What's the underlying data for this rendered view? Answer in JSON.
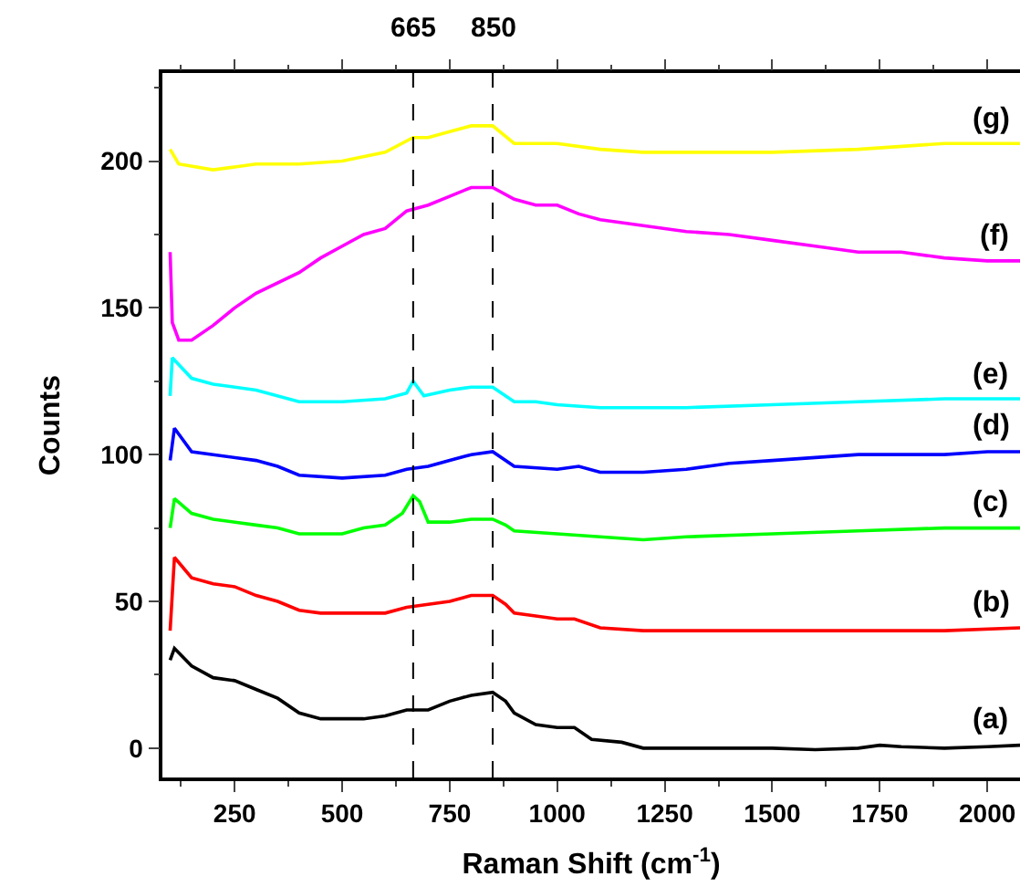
{
  "chart_data": {
    "type": "line",
    "xlabel": "Raman Shift (cm$^{-1}$)",
    "ylabel": "Counts",
    "xlim": [
      82,
      2076
    ],
    "ylim": [
      -10,
      230
    ],
    "xticks": [
      250,
      500,
      750,
      1000,
      1250,
      1500,
      1750,
      2000
    ],
    "yticks": [
      0,
      50,
      100,
      150,
      200
    ],
    "legend": false,
    "marker": "none",
    "line_style": "solid",
    "ref_lines": [
      {
        "axis": "x",
        "value": 665,
        "label": "665",
        "color": "#000000",
        "line_style": "dashed"
      },
      {
        "axis": "x",
        "value": 850,
        "label": "850",
        "color": "#000000",
        "line_style": "dashed"
      }
    ],
    "series": [
      {
        "name": "(a)",
        "color": "#000000",
        "x": [
          100,
          110,
          150,
          200,
          250,
          300,
          350,
          400,
          450,
          500,
          550,
          600,
          650,
          700,
          750,
          800,
          850,
          880,
          900,
          950,
          1000,
          1040,
          1080,
          1150,
          1200,
          1300,
          1400,
          1500,
          1600,
          1700,
          1750,
          1800,
          1900,
          2000,
          2076
        ],
        "values": [
          30,
          34,
          28,
          24,
          23,
          20,
          17,
          12,
          10,
          10,
          10,
          11,
          13,
          13,
          16,
          18,
          19,
          16,
          12,
          8,
          7,
          7,
          3,
          2,
          0,
          0,
          0,
          0,
          -0.5,
          0,
          1,
          0.5,
          0,
          0.5,
          1
        ]
      },
      {
        "name": "(b)",
        "color": "#ff0000",
        "x": [
          100,
          110,
          150,
          200,
          250,
          300,
          350,
          400,
          450,
          500,
          600,
          650,
          700,
          750,
          800,
          850,
          880,
          900,
          950,
          1000,
          1040,
          1100,
          1200,
          1300,
          1500,
          1700,
          1900,
          2076
        ],
        "values": [
          40,
          65,
          58,
          56,
          55,
          52,
          50,
          47,
          46,
          46,
          46,
          48,
          49,
          50,
          52,
          52,
          49,
          46,
          45,
          44,
          44,
          41,
          40,
          40,
          40,
          40,
          40,
          41
        ]
      },
      {
        "name": "(c)",
        "color": "#00ff00",
        "x": [
          100,
          110,
          150,
          200,
          300,
          350,
          400,
          500,
          550,
          600,
          640,
          665,
          680,
          700,
          750,
          800,
          850,
          880,
          900,
          1000,
          1100,
          1200,
          1300,
          1500,
          1700,
          1900,
          2076
        ],
        "values": [
          75,
          85,
          80,
          78,
          76,
          75,
          73,
          73,
          75,
          76,
          80,
          86,
          84,
          77,
          77,
          78,
          78,
          76,
          74,
          73,
          72,
          71,
          72,
          73,
          74,
          75,
          75
        ]
      },
      {
        "name": "(d)",
        "color": "#0000ff",
        "x": [
          100,
          110,
          150,
          200,
          300,
          350,
          400,
          500,
          600,
          650,
          700,
          750,
          800,
          850,
          900,
          1000,
          1050,
          1100,
          1200,
          1300,
          1400,
          1500,
          1600,
          1700,
          1800,
          1900,
          2000,
          2076
        ],
        "values": [
          98,
          109,
          101,
          100,
          98,
          96,
          93,
          92,
          93,
          95,
          96,
          98,
          100,
          101,
          96,
          95,
          96,
          94,
          94,
          95,
          97,
          98,
          99,
          100,
          100,
          100,
          101,
          101
        ]
      },
      {
        "name": "(e)",
        "color": "#00ffff",
        "x": [
          100,
          105,
          150,
          200,
          300,
          400,
          500,
          600,
          650,
          665,
          690,
          750,
          800,
          850,
          900,
          950,
          1000,
          1100,
          1200,
          1300,
          1500,
          1700,
          1900,
          2076
        ],
        "values": [
          120,
          133,
          126,
          124,
          122,
          118,
          118,
          119,
          121,
          125,
          120,
          122,
          123,
          123,
          118,
          118,
          117,
          116,
          116,
          116,
          117,
          118,
          119,
          119
        ]
      },
      {
        "name": "(f)",
        "color": "#ff00ff",
        "x": [
          100,
          105,
          120,
          150,
          200,
          250,
          300,
          400,
          450,
          500,
          550,
          600,
          650,
          700,
          750,
          800,
          850,
          900,
          950,
          1000,
          1050,
          1100,
          1200,
          1300,
          1400,
          1500,
          1600,
          1700,
          1800,
          1900,
          2000,
          2076
        ],
        "values": [
          169,
          145,
          139,
          139,
          144,
          150,
          155,
          162,
          167,
          171,
          175,
          177,
          183,
          185,
          188,
          191,
          191,
          187,
          185,
          185,
          182,
          180,
          178,
          176,
          175,
          173,
          171,
          169,
          169,
          167,
          166,
          166
        ]
      },
      {
        "name": "(g)",
        "color": "#ffff00",
        "x": [
          100,
          120,
          200,
          250,
          300,
          400,
          500,
          600,
          665,
          700,
          750,
          800,
          850,
          900,
          1000,
          1100,
          1200,
          1300,
          1500,
          1700,
          1900,
          2076
        ],
        "values": [
          204,
          199,
          197,
          198,
          199,
          199,
          200,
          203,
          208,
          208,
          210,
          212,
          212,
          206,
          206,
          204,
          203,
          203,
          203,
          204,
          206,
          206
        ]
      }
    ]
  }
}
